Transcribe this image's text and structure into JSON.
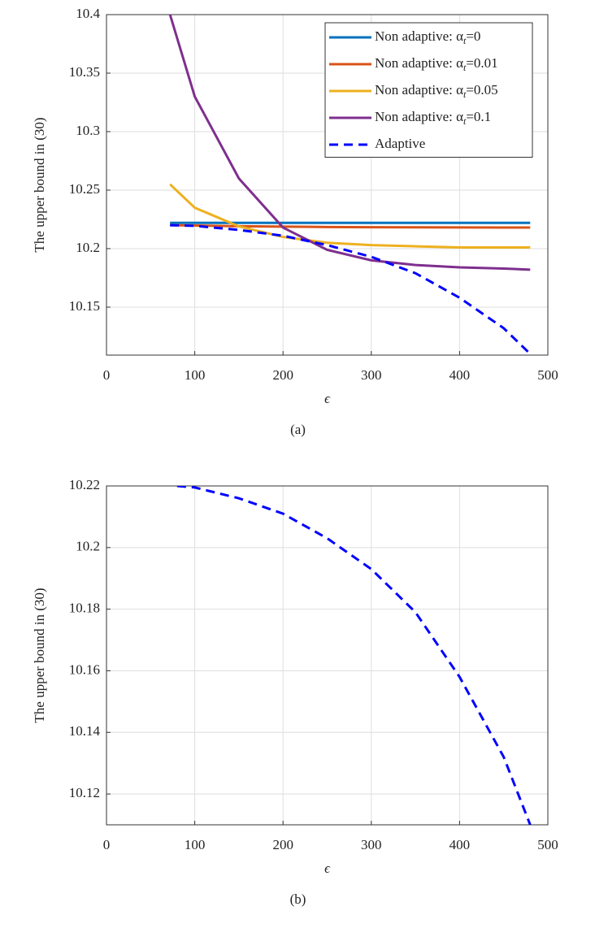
{
  "chart_data": [
    {
      "type": "line",
      "xlabel": "ϵ",
      "ylabel": "The upper bound in (30)",
      "caption": "(a)",
      "x": [
        72,
        100,
        150,
        200,
        250,
        300,
        350,
        400,
        450,
        480
      ],
      "xlim": [
        0,
        500
      ],
      "xticks": [
        0,
        100,
        200,
        300,
        400,
        500
      ],
      "ylim": [
        10.109,
        10.4
      ],
      "yticks": [
        10.15,
        10.2,
        10.25,
        10.3,
        10.35,
        10.4
      ],
      "grid": true,
      "legend": "upper right",
      "series": [
        {
          "name": "Non adaptive: αt=0",
          "color": "#0072bd",
          "style": "solid",
          "values": [
            10.222,
            10.222,
            10.222,
            10.222,
            10.222,
            10.222,
            10.222,
            10.222,
            10.222,
            10.222
          ]
        },
        {
          "name": "Non adaptive: αt=0.01",
          "color": "#d95319",
          "style": "solid",
          "values": [
            10.22,
            10.2198,
            10.2192,
            10.2188,
            10.2185,
            10.2183,
            10.2182,
            10.2181,
            10.218,
            10.218
          ]
        },
        {
          "name": "Non adaptive: αt=0.05",
          "color": "#edb120",
          "style": "solid",
          "values": [
            10.255,
            10.235,
            10.219,
            10.21,
            10.205,
            10.203,
            10.202,
            10.201,
            10.201,
            10.201
          ]
        },
        {
          "name": "Non adaptive: αt=0.1",
          "color": "#7e2f8e",
          "style": "solid",
          "values": [
            10.4,
            10.33,
            10.26,
            10.218,
            10.199,
            10.19,
            10.186,
            10.184,
            10.183,
            10.182
          ]
        },
        {
          "name": "Adaptive",
          "color": "#0000ff",
          "style": "dashed",
          "values": [
            10.22,
            10.2195,
            10.216,
            10.211,
            10.203,
            10.193,
            10.179,
            10.158,
            10.132,
            10.11
          ]
        }
      ]
    },
    {
      "type": "line",
      "xlabel": "ϵ",
      "ylabel": "The upper bound in (30)",
      "caption": "(b)",
      "x": [
        80,
        100,
        150,
        200,
        250,
        300,
        350,
        400,
        450,
        480
      ],
      "xlim": [
        0,
        500
      ],
      "xticks": [
        0,
        100,
        200,
        300,
        400,
        500
      ],
      "ylim": [
        10.11,
        10.22
      ],
      "yticks": [
        10.12,
        10.14,
        10.16,
        10.18,
        10.2,
        10.22
      ],
      "grid": true,
      "series": [
        {
          "color": "#0000ff",
          "style": "dashed",
          "values": [
            10.22,
            10.2195,
            10.216,
            10.211,
            10.203,
            10.193,
            10.179,
            10.158,
            10.132,
            10.11
          ]
        }
      ]
    }
  ]
}
